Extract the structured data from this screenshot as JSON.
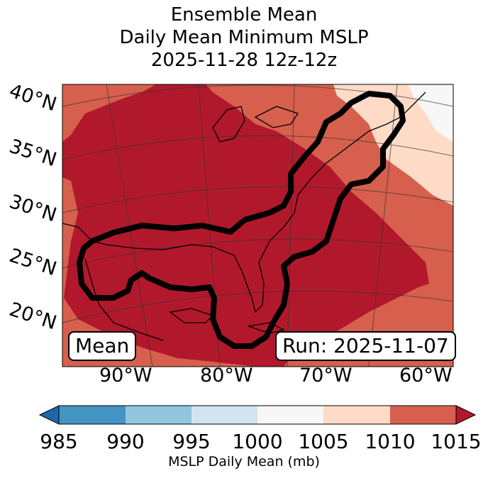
{
  "title": {
    "line1": "Ensemble Mean",
    "line2": "Daily Mean Minimum MSLP",
    "line3": "2025-11-28 12z-12z"
  },
  "map": {
    "lat_labels": [
      "40°N",
      "35°N",
      "30°N",
      "25°N",
      "20°N"
    ],
    "lon_labels": [
      "90°W",
      "80°W",
      "70°W",
      "60°W"
    ],
    "mean_label": "Mean",
    "run_label": "Run: 2025-11-07",
    "contour_color": "#000000"
  },
  "colorbar": {
    "ticks": [
      "985",
      "990",
      "995",
      "1000",
      "1005",
      "1010",
      "1015"
    ],
    "label": "MSLP Daily Mean (mb)",
    "colors": {
      "under": "#2166ac",
      "c985_990": "#4393c3",
      "c990_995": "#92c5de",
      "c995_1000": "#d1e5f0",
      "c1000_1005": "#f7f7f7",
      "c1005_1010": "#fddbc7",
      "c1010_1015": "#d6604d",
      "over": "#b2182b"
    }
  }
}
